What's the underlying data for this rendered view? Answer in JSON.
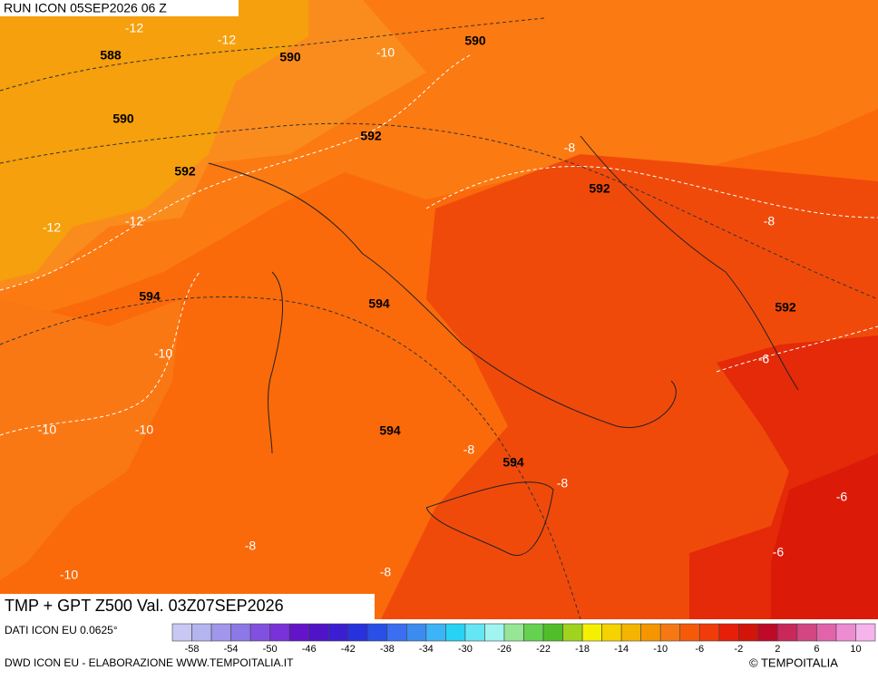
{
  "header": {
    "run": "RUN ICON 05SEP2026 06 Z",
    "title": "TMP + GPT Z500 Val. 03Z07SEP2026"
  },
  "map_labels": {
    "temperature": [
      "-12",
      "-12",
      "-10",
      "-8",
      "-12",
      "-12",
      "-8",
      "-10",
      "-6",
      "-10",
      "-10",
      "-8",
      "-8",
      "-6",
      "-8",
      "-6",
      "-10",
      "-8"
    ],
    "geopotential": [
      "588",
      "590",
      "590",
      "590",
      "592",
      "592",
      "592",
      "594",
      "594",
      "592",
      "594",
      "594"
    ]
  },
  "colorbar": {
    "colors": [
      "#c8c8f5",
      "#b4b4f0",
      "#a096ec",
      "#8c78e6",
      "#8250e0",
      "#7832d8",
      "#6414c8",
      "#5014c8",
      "#3c1ed2",
      "#2832dc",
      "#2850e6",
      "#3c6ef0",
      "#3c8cf0",
      "#3cb4f5",
      "#28d2f5",
      "#64e6f5",
      "#a0f5f0",
      "#96e696",
      "#64d250",
      "#50be28",
      "#a0d21e",
      "#f5f000",
      "#f5d200",
      "#f5b400",
      "#f59600",
      "#f57814",
      "#f55a0a",
      "#f03c0a",
      "#e61e0a",
      "#d2140a",
      "#be0a28",
      "#c8285a",
      "#d24682",
      "#e164aa",
      "#ee8cd2",
      "#f5b4ec"
    ],
    "ticks": [
      -58,
      -54,
      -50,
      -46,
      -42,
      -38,
      -34,
      -30,
      -26,
      -22,
      -18,
      -14,
      -10,
      -6,
      -2,
      2,
      6,
      10
    ]
  },
  "footer": {
    "source": "DATI ICON EU 0.0625°",
    "credits": "DWD ICON EU - ELABORAZIONE WWW.TEMPOITALIA.IT",
    "copyright": "© TEMPOITALIA"
  }
}
